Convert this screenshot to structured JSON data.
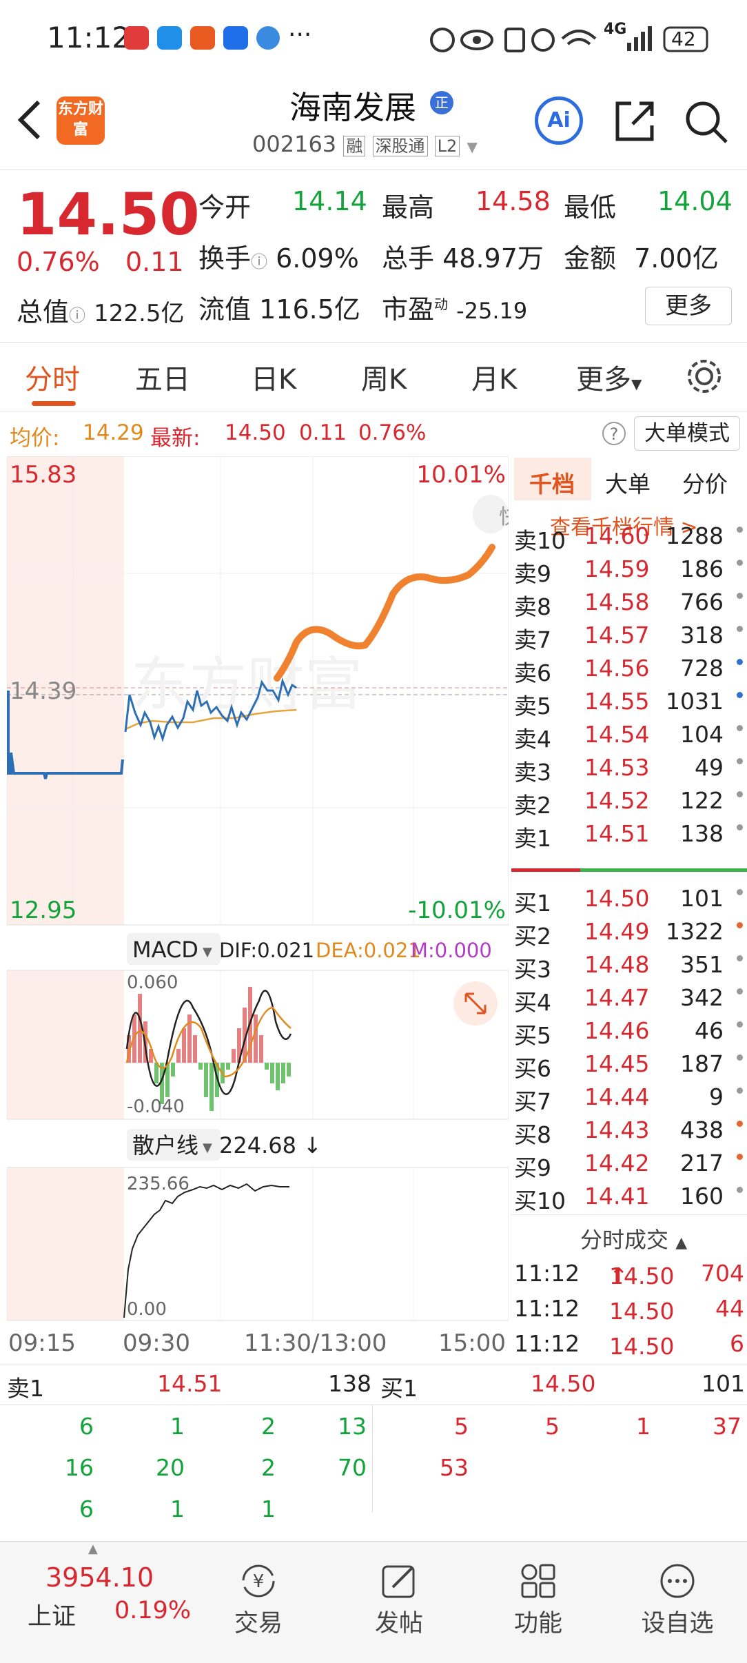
{
  "status": {
    "time": "11:12",
    "more": "···",
    "net": "4G",
    "battery": "42"
  },
  "nav": {
    "logo_text": "东方财富",
    "title": "海南发展",
    "code": "002163",
    "tags": [
      "融",
      "深股通",
      "L2"
    ],
    "badge": "正",
    "ai_label": "Ai"
  },
  "quote": {
    "price": "14.50",
    "change_pct": "0.76%",
    "change": "0.11",
    "open_label": "今开",
    "open": "14.14",
    "high_label": "最高",
    "high": "14.58",
    "low_label": "最低",
    "low": "14.04",
    "turnover_label": "换手",
    "turnover": "6.09%",
    "volume_label": "总手",
    "volume": "48.97万",
    "amount_label": "金额",
    "amount": "7.00亿",
    "mktcap_label": "总值",
    "mktcap": "122.5亿",
    "float_label": "流值",
    "float": "116.5亿",
    "pe_label": "市盈",
    "pe_sup": "动",
    "pe": "-25.19",
    "more_label": "更多"
  },
  "tabs": [
    "分时",
    "五日",
    "日K",
    "周K",
    "月K",
    "更多"
  ],
  "avgbar": {
    "avg_label": "均价:",
    "avg": "14.29",
    "latest_label": "最新:",
    "latest": "14.50",
    "change": "0.11",
    "pct": "0.76%",
    "help": "?",
    "mode_label": "大单模式"
  },
  "chart": {
    "y_top": "15.83",
    "y_mid": "14.39",
    "y_bottom": "12.95",
    "pct_top": "10.01%",
    "pct_bottom": "-10.01%",
    "watermark": "东方财富",
    "side_button": "快",
    "macd_label": "MACD",
    "macd_dif": "DIF:0.021",
    "macd_dea": "DEA:0.021",
    "macd_m": "M:0.000",
    "macd_top": "0.060",
    "macd_bottom": "-0.040",
    "retail_label": "散户线",
    "retail_value": "224.68",
    "retail_top": "235.66",
    "retail_bottom": "0.00",
    "x_labels": [
      "09:15",
      "09:30",
      "11:30/13:00",
      "15:00"
    ],
    "colors": {
      "price": "#2e6fb4",
      "avg": "#e8a23a",
      "annot": "#f0822f",
      "macd_up": "#e58080",
      "macd_down": "#6fc36f"
    }
  },
  "orderbook": {
    "tabs": [
      "千档",
      "大单",
      "分价"
    ],
    "link": "查看千档行情 >",
    "asks": [
      {
        "label": "卖10",
        "price": "14.60",
        "vol": "1288",
        "dot": "gray"
      },
      {
        "label": "卖9",
        "price": "14.59",
        "vol": "186",
        "dot": "gray"
      },
      {
        "label": "卖8",
        "price": "14.58",
        "vol": "766",
        "dot": "gray"
      },
      {
        "label": "卖7",
        "price": "14.57",
        "vol": "318",
        "dot": "gray"
      },
      {
        "label": "卖6",
        "price": "14.56",
        "vol": "728",
        "dot": "blue"
      },
      {
        "label": "卖5",
        "price": "14.55",
        "vol": "1031",
        "dot": "blue"
      },
      {
        "label": "卖4",
        "price": "14.54",
        "vol": "104",
        "dot": "gray"
      },
      {
        "label": "卖3",
        "price": "14.53",
        "vol": "49",
        "dot": "gray"
      },
      {
        "label": "卖2",
        "price": "14.52",
        "vol": "122",
        "dot": "gray"
      },
      {
        "label": "卖1",
        "price": "14.51",
        "vol": "138",
        "dot": "gray"
      }
    ],
    "bids": [
      {
        "label": "买1",
        "price": "14.50",
        "vol": "101",
        "dot": "gray"
      },
      {
        "label": "买2",
        "price": "14.49",
        "vol": "1322",
        "dot": "orange"
      },
      {
        "label": "买3",
        "price": "14.48",
        "vol": "351",
        "dot": "gray"
      },
      {
        "label": "买4",
        "price": "14.47",
        "vol": "342",
        "dot": "gray"
      },
      {
        "label": "买5",
        "price": "14.46",
        "vol": "46",
        "dot": "gray"
      },
      {
        "label": "买6",
        "price": "14.45",
        "vol": "187",
        "dot": "gray"
      },
      {
        "label": "买7",
        "price": "14.44",
        "vol": "9",
        "dot": "gray"
      },
      {
        "label": "买8",
        "price": "14.43",
        "vol": "438",
        "dot": "orange"
      },
      {
        "label": "买9",
        "price": "14.42",
        "vol": "217",
        "dot": "orange"
      },
      {
        "label": "买10",
        "price": "14.41",
        "vol": "160",
        "dot": "gray"
      }
    ],
    "trades_title": "分时成交",
    "trades": [
      {
        "time": "11:12",
        "price": "14.50",
        "arrow": "↑",
        "vol": "704"
      },
      {
        "time": "11:12",
        "price": "14.50",
        "arrow": "",
        "vol": "44"
      },
      {
        "time": "11:12",
        "price": "14.50",
        "arrow": "",
        "vol": "6"
      }
    ]
  },
  "bottom_queue": {
    "sell_label": "卖1",
    "sell_price": "14.51",
    "sell_vol": "138",
    "buy_label": "买1",
    "buy_price": "14.50",
    "buy_vol": "101",
    "sell_rows": [
      [
        "6",
        "1",
        "2",
        "13"
      ],
      [
        "16",
        "20",
        "2",
        "70"
      ],
      [
        "6",
        "1",
        "1",
        ""
      ]
    ],
    "buy_rows": [
      [
        "5",
        "5",
        "1",
        "37"
      ],
      [
        "53",
        "",
        "",
        ""
      ]
    ]
  },
  "tabbar": {
    "index_value": "3954.10",
    "index_name": "上证",
    "index_pct": "0.19%",
    "items": [
      "交易",
      "发帖",
      "功能",
      "设自选"
    ]
  }
}
